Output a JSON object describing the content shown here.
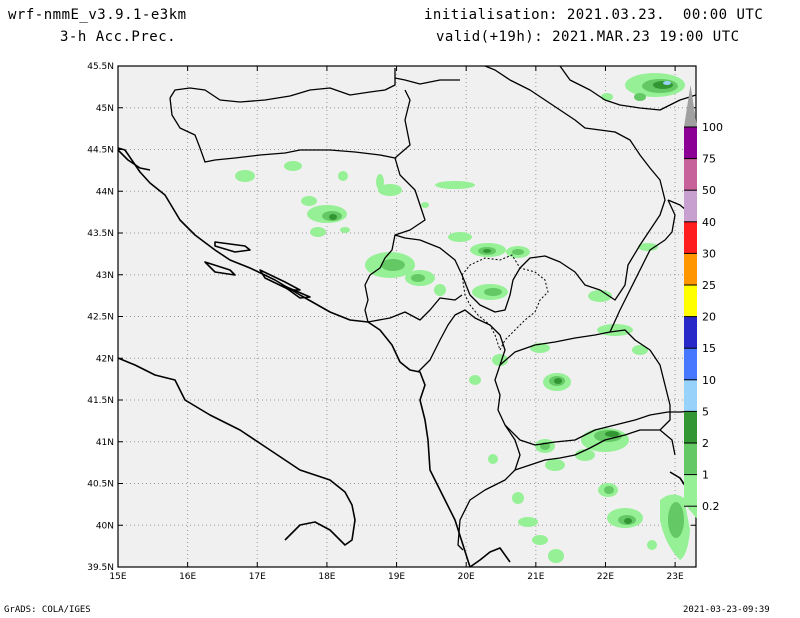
{
  "header": {
    "model": "wrf-nmmE_v3.9.1-e3km",
    "field": "3-h Acc.Prec.",
    "init": "initialisation: 2021.03.23.  00:00 UTC",
    "valid": "valid(+19h): 2021.MAR.23 19:00 UTC"
  },
  "footer": {
    "credit": "GrADS: COLA/IGES",
    "timestamp": "2021-03-23-09:39"
  },
  "map": {
    "lon_labels": [
      "15E",
      "16E",
      "17E",
      "18E",
      "19E",
      "20E",
      "21E",
      "22E",
      "23E"
    ],
    "lat_labels": [
      "45.5N",
      "45N",
      "44.5N",
      "44N",
      "43.5N",
      "43N",
      "42.5N",
      "42N",
      "41.5N",
      "41N",
      "40.5N",
      "40N",
      "39.5N"
    ],
    "lon_range": [
      15,
      23.3
    ],
    "lat_range": [
      39.5,
      45.5
    ],
    "background_color": "#f0f0f0",
    "grid": "dotted"
  },
  "legend": {
    "labels": [
      "100",
      "75",
      "50",
      "40",
      "30",
      "25",
      "20",
      "15",
      "10",
      "5",
      "2",
      "1",
      "0.2"
    ],
    "colors": [
      "#a0a0a0",
      "#8c0096",
      "#c8629b",
      "#c8a0d0",
      "#ff1e1e",
      "#ff9600",
      "#ffff00",
      "#2828c8",
      "#4678ff",
      "#96d2fa",
      "#329632",
      "#64c864",
      "#96f096"
    ]
  }
}
